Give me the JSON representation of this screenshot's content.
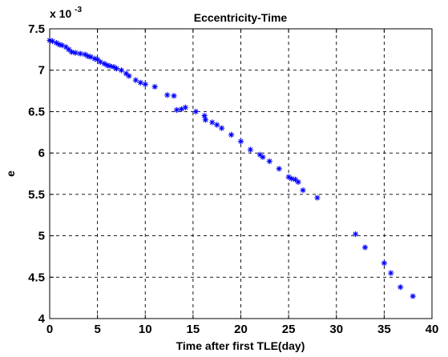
{
  "chart_data": {
    "type": "scatter",
    "title": "Eccentricity-Time",
    "xlabel": "Time after first TLE(day)",
    "ylabel": "e",
    "y_multiplier_label": {
      "base": "x 10",
      "exponent": "-3"
    },
    "xlim": [
      0,
      40
    ],
    "ylim": [
      4,
      7.5
    ],
    "x_ticks": [
      0,
      5,
      10,
      15,
      20,
      25,
      30,
      35,
      40
    ],
    "y_ticks": [
      4,
      4.5,
      5,
      5.5,
      6,
      6.5,
      7,
      7.5
    ],
    "x_tick_labels": [
      "0",
      "5",
      "10",
      "15",
      "20",
      "25",
      "30",
      "35",
      "40"
    ],
    "y_tick_labels": [
      "4",
      "4.5",
      "5",
      "5.5",
      "6",
      "6.5",
      "7",
      "7.5"
    ],
    "grid": true,
    "marker": "*",
    "marker_color": "#0000ff",
    "series": [
      {
        "x": [
          0.0,
          0.3,
          0.7,
          1.0,
          1.3,
          1.7,
          2.0,
          2.3,
          2.7,
          3.2,
          3.7,
          4.0,
          4.3,
          4.7,
          5.0,
          5.3,
          5.7,
          6.0,
          6.3,
          6.7,
          7.0,
          7.5,
          8.0,
          8.3,
          9.0,
          9.5,
          10.0,
          11.0,
          12.3,
          13.0,
          13.3,
          13.8,
          14.2,
          15.3,
          16.2,
          16.3,
          17.0,
          17.5,
          18.0,
          19.0,
          20.0,
          21.0,
          22.0,
          22.3,
          23.0,
          24.0,
          25.0,
          25.3,
          25.7,
          26.0,
          26.5,
          28.0,
          32.0,
          33.0,
          35.0,
          35.7,
          36.7,
          38.0
        ],
        "y": [
          7.36,
          7.35,
          7.33,
          7.31,
          7.3,
          7.28,
          7.25,
          7.22,
          7.21,
          7.2,
          7.19,
          7.17,
          7.16,
          7.14,
          7.13,
          7.1,
          7.08,
          7.06,
          7.05,
          7.04,
          7.02,
          7.0,
          6.96,
          6.93,
          6.88,
          6.85,
          6.83,
          6.8,
          6.7,
          6.69,
          6.52,
          6.53,
          6.55,
          6.5,
          6.45,
          6.4,
          6.37,
          6.34,
          6.3,
          6.22,
          6.14,
          6.04,
          5.98,
          5.95,
          5.9,
          5.81,
          5.71,
          5.69,
          5.68,
          5.65,
          5.55,
          5.46,
          5.02,
          4.86,
          4.67,
          4.55,
          4.38,
          4.27
        ]
      }
    ]
  }
}
